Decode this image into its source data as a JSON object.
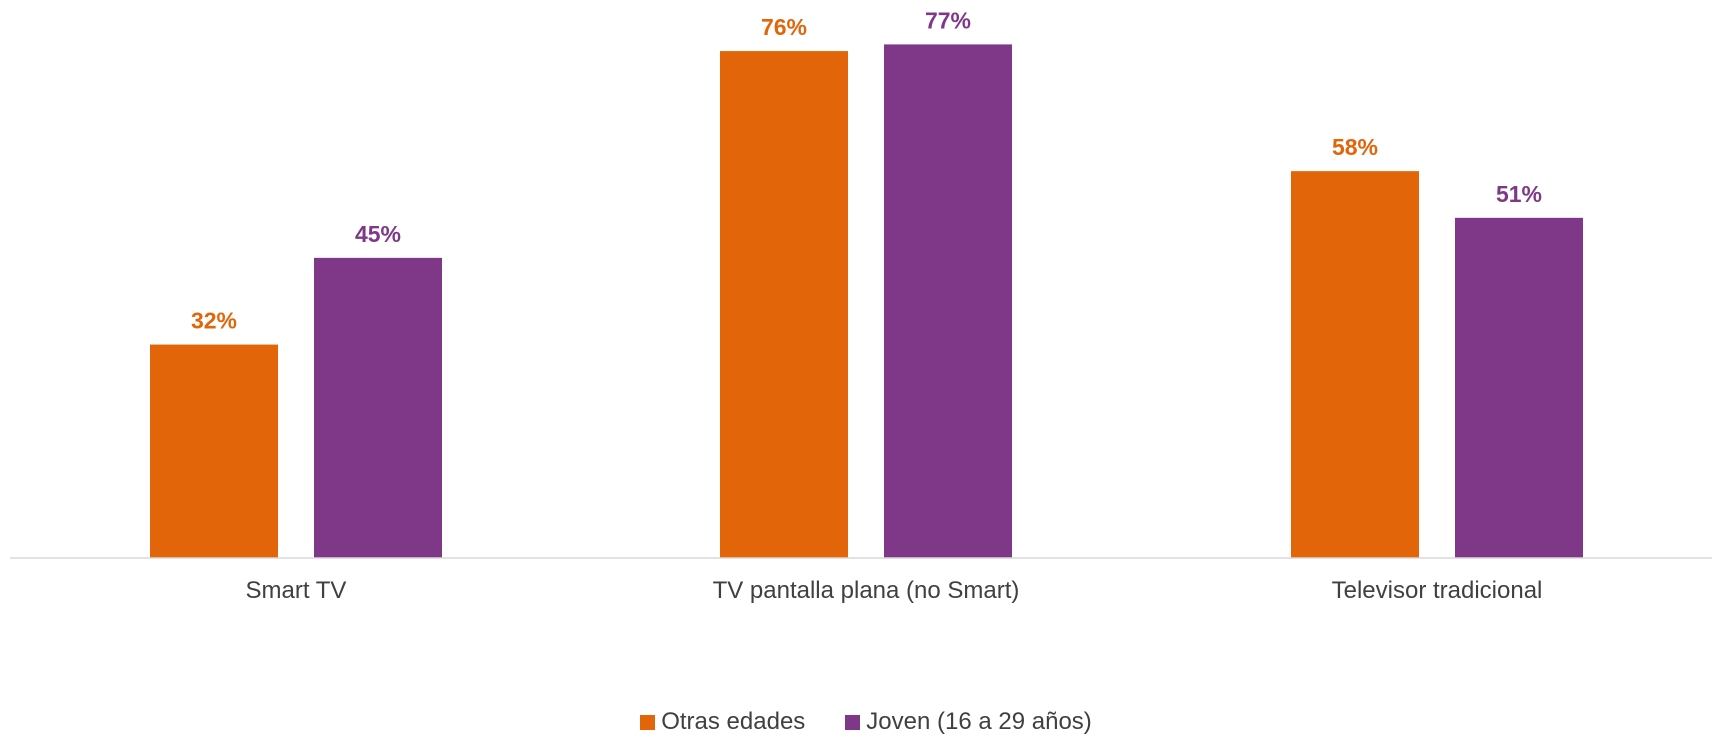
{
  "chart_data": {
    "type": "bar",
    "categories": [
      "Smart TV",
      "TV pantalla plana (no Smart)",
      "Televisor tradicional"
    ],
    "series": [
      {
        "name": "Otras edades",
        "values": [
          32,
          76,
          58
        ],
        "labels": [
          "32%",
          "76%",
          "58%"
        ],
        "color": "#E36509"
      },
      {
        "name": "Joven (16 a 29 años)",
        "values": [
          45,
          77,
          51
        ],
        "labels": [
          "45%",
          "77%",
          "51%"
        ],
        "color": "#7F3887"
      }
    ],
    "ylim": [
      0,
      80
    ],
    "grid": false,
    "legend_position": "bottom"
  }
}
